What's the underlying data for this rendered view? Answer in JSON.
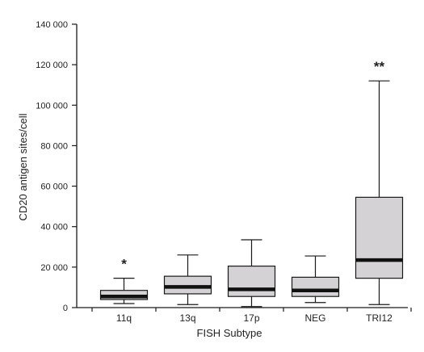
{
  "chart_data": {
    "type": "box",
    "title": "",
    "xlabel": "FISH Subtype",
    "ylabel": "CD20 antigen sites/cell",
    "ylim": [
      0,
      140000
    ],
    "ytick_values": [
      0,
      20000,
      40000,
      60000,
      80000,
      100000,
      120000,
      140000
    ],
    "ytick_labels": [
      "0",
      "20 000",
      "40 000",
      "60 000",
      "80 000",
      "100 000",
      "120 000",
      "140 000"
    ],
    "categories": [
      "11q",
      "13q",
      "17p",
      "NEG",
      "TRI12"
    ],
    "boxes": [
      {
        "category": "11q",
        "min": 2000,
        "q1": 4000,
        "median": 5500,
        "q3": 8500,
        "max": 14500,
        "annotation": "*"
      },
      {
        "category": "13q",
        "min": 1500,
        "q1": 6800,
        "median": 10200,
        "q3": 15500,
        "max": 26000,
        "annotation": ""
      },
      {
        "category": "17p",
        "min": 500,
        "q1": 5500,
        "median": 9000,
        "q3": 20500,
        "max": 33500,
        "annotation": ""
      },
      {
        "category": "NEG",
        "min": 2500,
        "q1": 5500,
        "median": 8500,
        "q3": 15000,
        "max": 25500,
        "annotation": ""
      },
      {
        "category": "TRI12",
        "min": 1500,
        "q1": 14500,
        "median": 23500,
        "q3": 54500,
        "max": 112000,
        "annotation": "**"
      }
    ],
    "colors": {
      "box_fill": "#d4d2d4",
      "box_stroke": "#1a1a1a",
      "median": "#111111",
      "axis": "#1a1a1a"
    },
    "grid": false,
    "legend": "none"
  }
}
